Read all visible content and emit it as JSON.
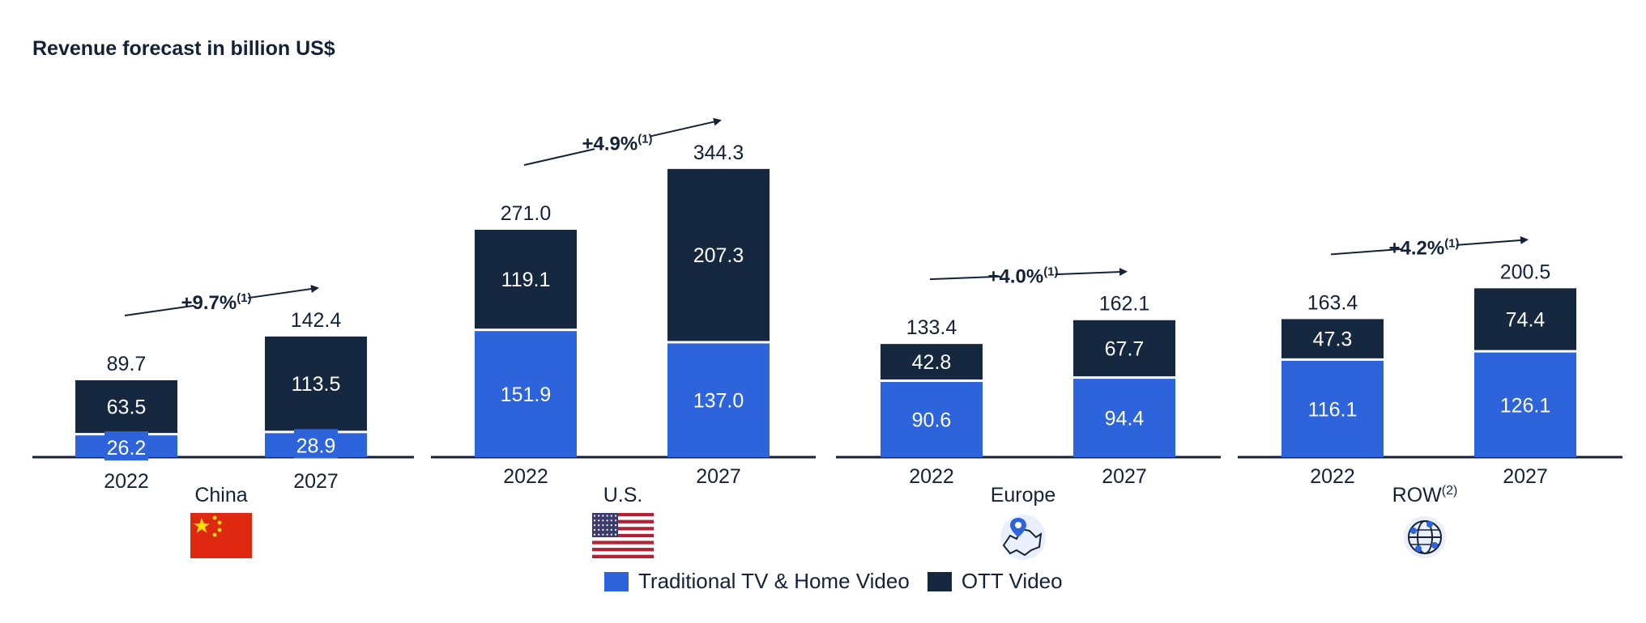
{
  "chart_data": {
    "type": "bar",
    "stacked": true,
    "title": "Revenue forecast in billion US$",
    "colors": {
      "traditional": "#2d64dc",
      "ott": "#162740",
      "axis": "#132238",
      "text": "#132238"
    },
    "series": [
      {
        "name": "Traditional TV & Home Video"
      },
      {
        "name": "OTT Video"
      }
    ],
    "groups": [
      {
        "region": "China",
        "region_sup": "",
        "icon": "china-flag-icon",
        "cagr": "+9.7%",
        "cagr_note": "(1)",
        "years": [
          "2022",
          "2027"
        ],
        "traditional": [
          26.2,
          28.9
        ],
        "ott": [
          63.5,
          113.5
        ],
        "totals": [
          "89.7",
          "142.4"
        ],
        "traditional_labels": [
          "26.2",
          "28.9"
        ],
        "ott_labels": [
          "63.5",
          "113.5"
        ]
      },
      {
        "region": "U.S.",
        "region_sup": "",
        "icon": "us-flag-icon",
        "cagr": "+4.9%",
        "cagr_note": "(1)",
        "years": [
          "2022",
          "2027"
        ],
        "traditional": [
          151.9,
          137.0
        ],
        "ott": [
          119.1,
          207.3
        ],
        "totals": [
          "271.0",
          "344.3"
        ],
        "traditional_labels": [
          "151.9",
          "137.0"
        ],
        "ott_labels": [
          "119.1",
          "207.3"
        ]
      },
      {
        "region": "Europe",
        "region_sup": "",
        "icon": "europe-map-icon",
        "cagr": "+4.0%",
        "cagr_note": "(1)",
        "years": [
          "2022",
          "2027"
        ],
        "traditional": [
          90.6,
          94.4
        ],
        "ott": [
          42.8,
          67.7
        ],
        "totals": [
          "133.4",
          "162.1"
        ],
        "traditional_labels": [
          "90.6",
          "94.4"
        ],
        "ott_labels": [
          "42.8",
          "67.7"
        ]
      },
      {
        "region": "ROW",
        "region_sup": "(2)",
        "icon": "globe-icon",
        "cagr": "+4.2%",
        "cagr_note": "(1)",
        "years": [
          "2022",
          "2027"
        ],
        "traditional": [
          116.1,
          126.1
        ],
        "ott": [
          47.3,
          74.4
        ],
        "totals": [
          "163.4",
          "200.5"
        ],
        "traditional_labels": [
          "116.1",
          "126.1"
        ],
        "ott_labels": [
          "47.3",
          "74.4"
        ]
      }
    ]
  }
}
